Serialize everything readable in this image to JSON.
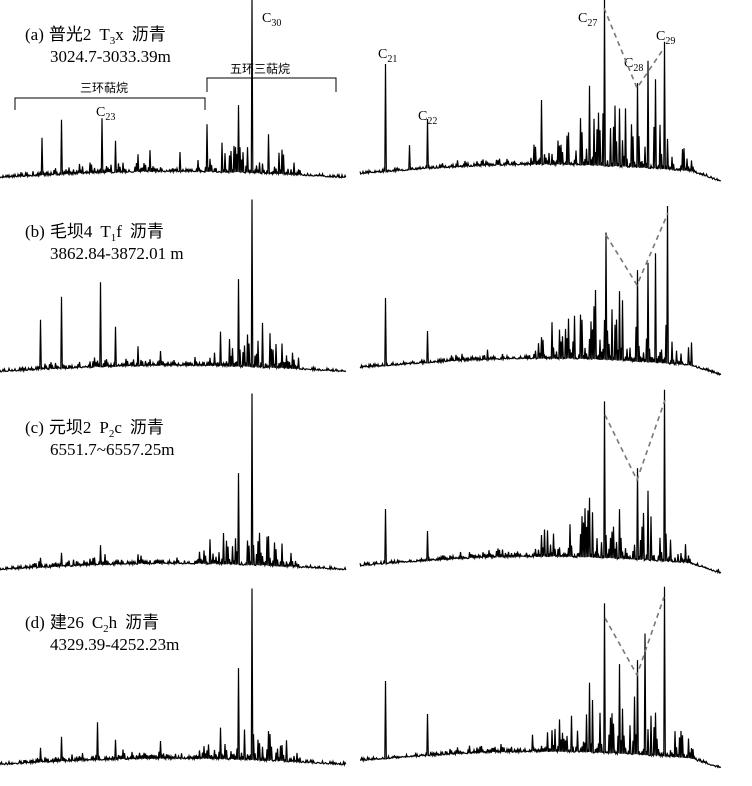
{
  "panels": [
    {
      "label": "(a)",
      "site": "普光2",
      "formula": [
        "T",
        "3",
        "x"
      ],
      "material": "沥青",
      "depth": "3024.7-3033.39m"
    },
    {
      "label": "(b)",
      "site": "毛坝4",
      "formula": [
        "T",
        "1",
        "f"
      ],
      "material": "沥青",
      "depth": "3862.84-3872.01 m"
    },
    {
      "label": "(c)",
      "site": "元坝2",
      "formula": [
        "P",
        "2",
        "c"
      ],
      "material": "沥青",
      "depth": "6551.7~6557.25m"
    },
    {
      "label": "(d)",
      "site": "建26",
      "formula": [
        "C",
        "2",
        "h"
      ],
      "material": "沥青",
      "depth": "4329.39-4252.23m"
    }
  ],
  "brackets": [
    {
      "label": "三环萜烷"
    },
    {
      "label": "五环三萜烷"
    }
  ],
  "peak_labels": [
    {
      "base": "C",
      "sub": "30"
    },
    {
      "base": "C",
      "sub": "23"
    },
    {
      "base": "C",
      "sub": "21"
    },
    {
      "base": "C",
      "sub": "22"
    },
    {
      "base": "C",
      "sub": "27"
    },
    {
      "base": "C",
      "sub": "28"
    },
    {
      "base": "C",
      "sub": "29"
    }
  ]
}
